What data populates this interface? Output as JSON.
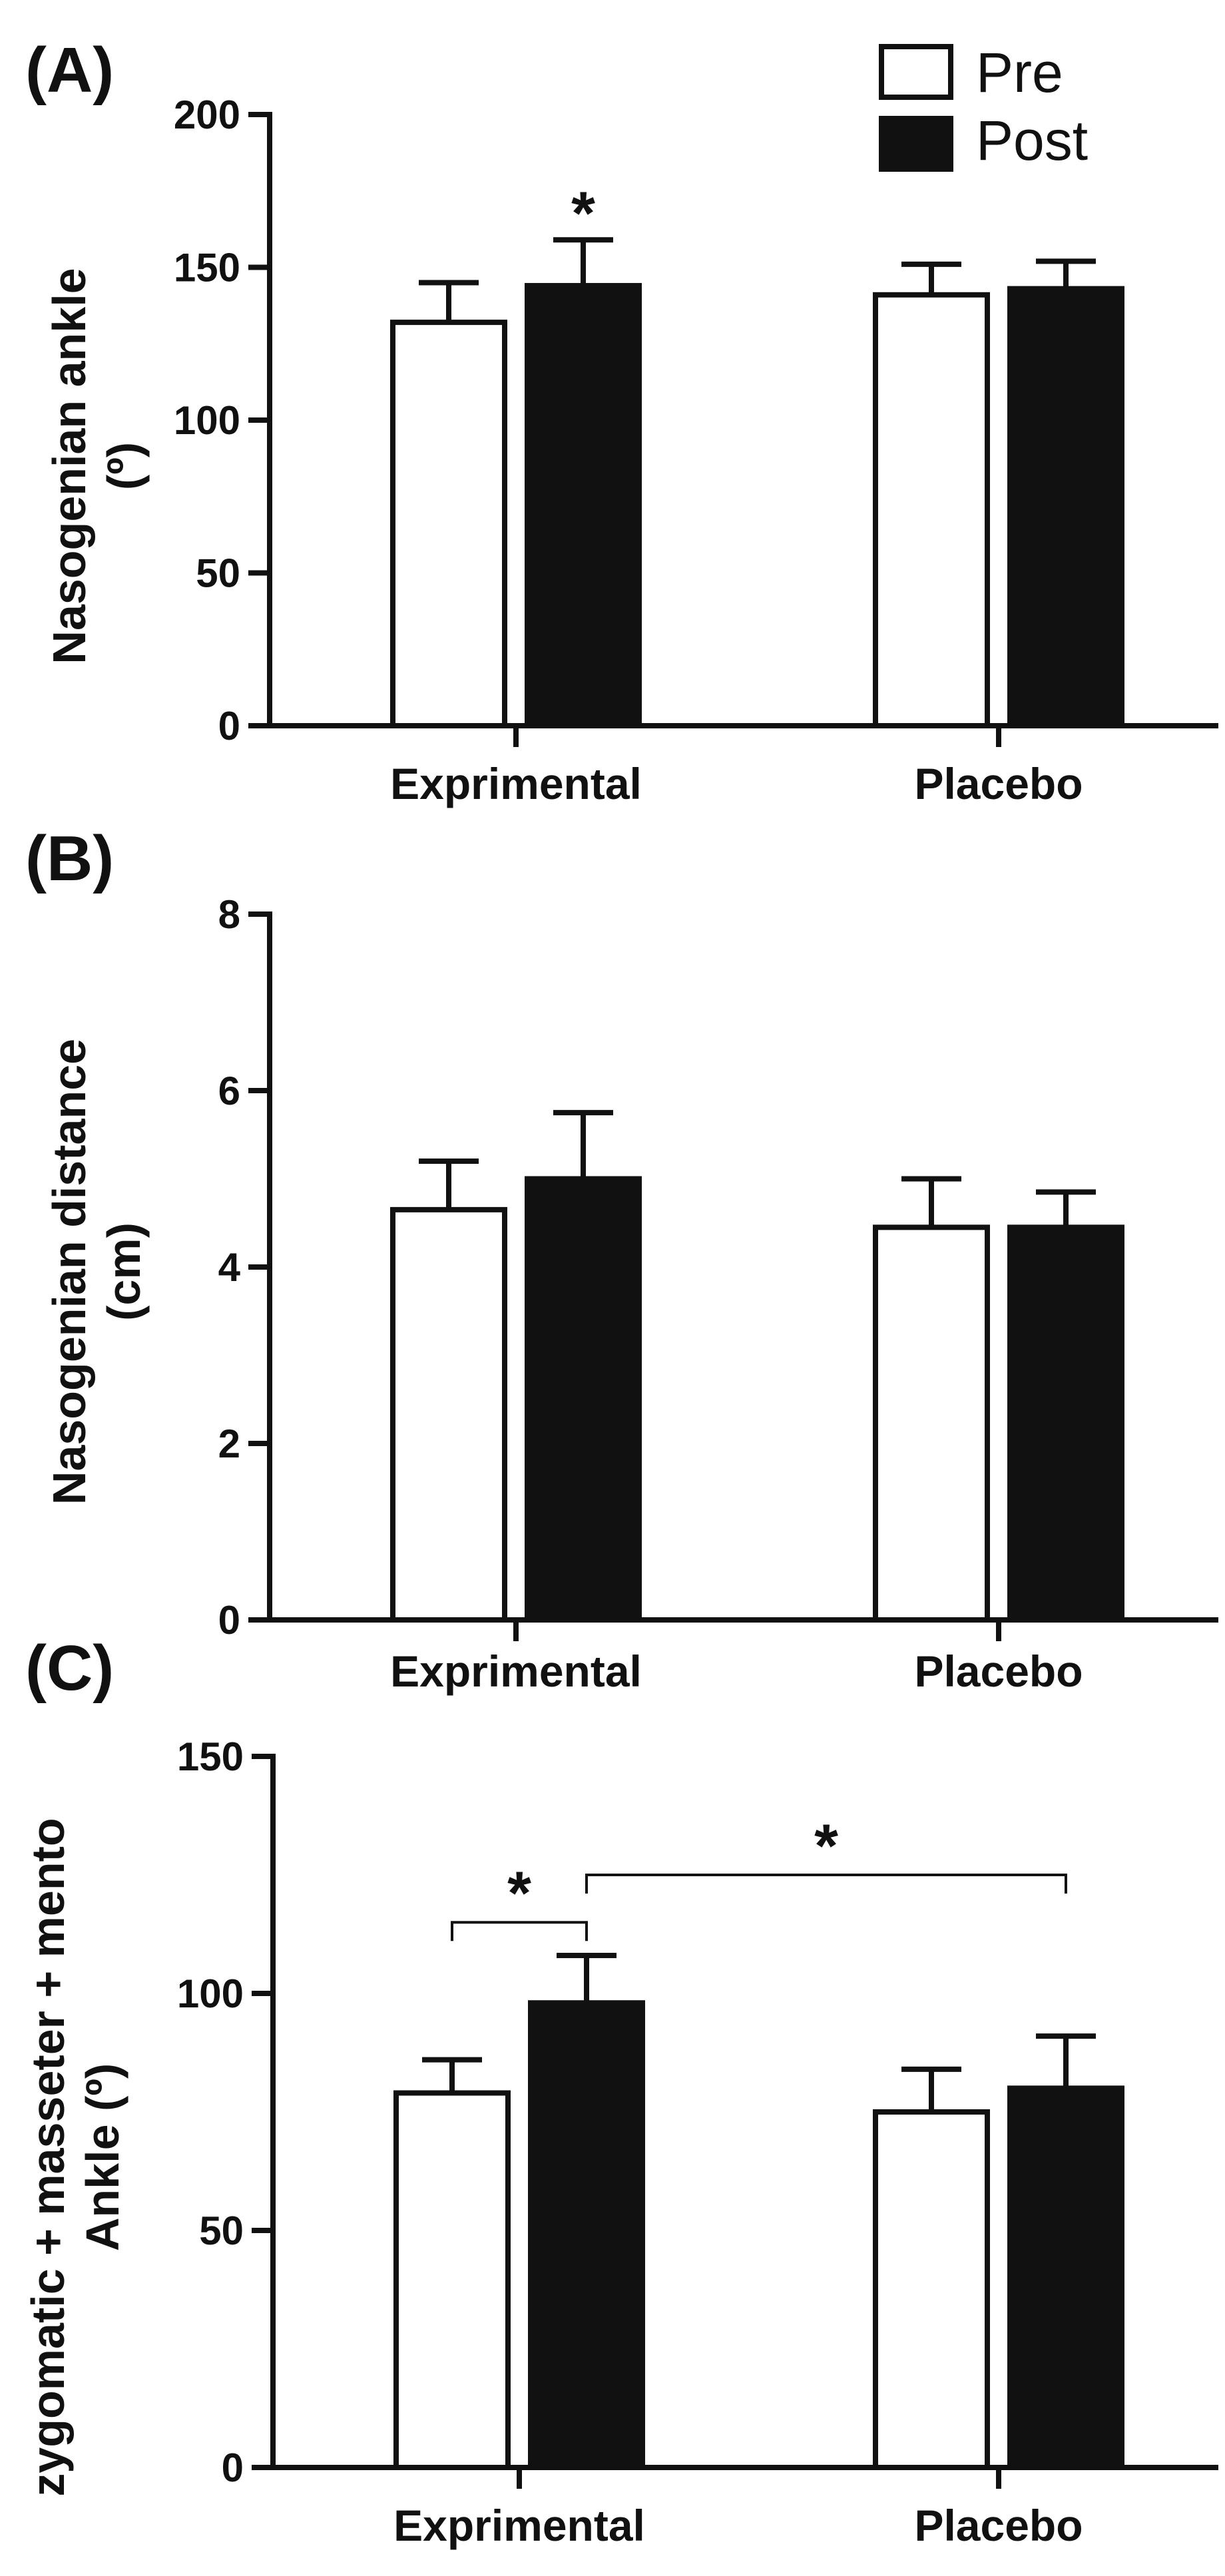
{
  "legend": {
    "items": [
      {
        "label": "Pre",
        "fill": "#ffffff"
      },
      {
        "label": "Post",
        "fill": "#111111"
      }
    ]
  },
  "chart_data": [
    {
      "type": "bar",
      "panel_label": "(A)",
      "categories": [
        "Exprimental",
        "Placebo"
      ],
      "ylabel": [
        "Nasogenian ankle",
        "(º)"
      ],
      "ylim": [
        0,
        200
      ],
      "yticks": [
        0,
        50,
        100,
        150,
        200
      ],
      "series": [
        {
          "name": "Pre",
          "values": [
            132,
            141
          ],
          "errors": [
            13,
            10
          ]
        },
        {
          "name": "Post",
          "values": [
            144,
            143
          ],
          "errors": [
            15,
            9
          ]
        }
      ],
      "annotations": [
        {
          "text": "*",
          "type": "above-bar",
          "category": 0,
          "series": 1
        }
      ]
    },
    {
      "type": "bar",
      "panel_label": "(B)",
      "categories": [
        "Exprimental",
        "Placebo"
      ],
      "ylabel": [
        "Nasogenian distance",
        "(cm)"
      ],
      "ylim": [
        0,
        8
      ],
      "yticks": [
        0,
        2,
        4,
        6,
        8
      ],
      "series": [
        {
          "name": "Pre",
          "values": [
            4.65,
            4.45
          ],
          "errors": [
            0.55,
            0.55
          ]
        },
        {
          "name": "Post",
          "values": [
            5.0,
            4.45
          ],
          "errors": [
            0.75,
            0.4
          ]
        }
      ],
      "annotations": []
    },
    {
      "type": "bar",
      "panel_label": "(C)",
      "categories": [
        "Exprimental",
        "Placebo"
      ],
      "ylabel": [
        "zygomatic + masseter + mento",
        "Ankle (º)"
      ],
      "ylim": [
        0,
        150
      ],
      "yticks": [
        0,
        50,
        100,
        150
      ],
      "series": [
        {
          "name": "Pre",
          "values": [
            79,
            75
          ],
          "errors": [
            7,
            9
          ]
        },
        {
          "name": "Post",
          "values": [
            98,
            80
          ],
          "errors": [
            10,
            11
          ]
        }
      ],
      "annotations": [
        {
          "text": "*",
          "type": "bracket",
          "from": [
            0,
            0
          ],
          "to": [
            0,
            1
          ],
          "level": 115
        },
        {
          "text": "*",
          "type": "bracket",
          "from": [
            0,
            1
          ],
          "to": [
            1,
            1
          ],
          "level": 125
        }
      ]
    }
  ]
}
